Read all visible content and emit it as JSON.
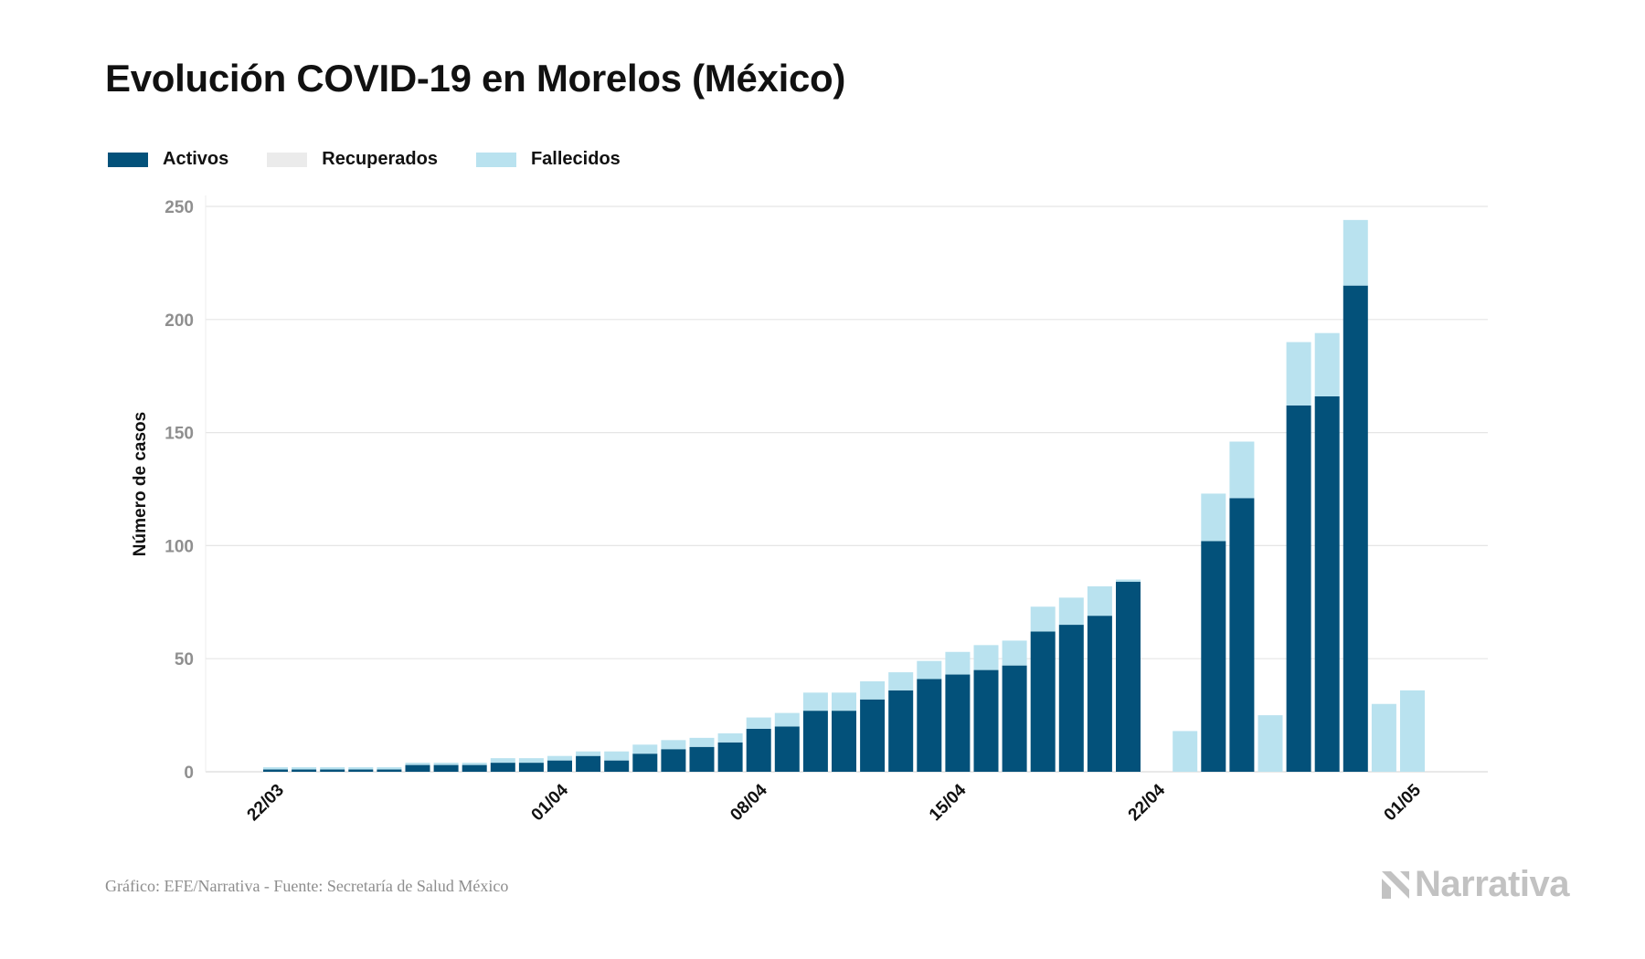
{
  "chart_data": {
    "type": "bar",
    "stacked": true,
    "title": "Evolución COVID-19 en Morelos (México)",
    "xlabel": "",
    "ylabel": "Número de casos",
    "ylim": [
      0,
      250
    ],
    "yticks": [
      0,
      50,
      100,
      150,
      200,
      250
    ],
    "grid": true,
    "legend_position": "top-left",
    "x_tick_labels": [
      {
        "index": 1,
        "label": "22/03"
      },
      {
        "index": 11,
        "label": "01/04"
      },
      {
        "index": 18,
        "label": "08/04"
      },
      {
        "index": 25,
        "label": "15/04"
      },
      {
        "index": 32,
        "label": "22/04"
      },
      {
        "index": 41,
        "label": "01/05"
      }
    ],
    "num_slots": 41,
    "series": [
      {
        "name": "Activos",
        "color": "#03517a",
        "values": [
          1,
          1,
          1,
          1,
          1,
          3,
          3,
          3,
          4,
          4,
          5,
          7,
          5,
          8,
          10,
          11,
          13,
          19,
          20,
          27,
          27,
          32,
          36,
          41,
          43,
          45,
          47,
          62,
          65,
          69,
          84,
          0,
          0,
          102,
          121,
          0,
          162,
          166,
          215,
          0,
          0
        ]
      },
      {
        "name": "Recuperados",
        "color": "#ebebeb",
        "values": [
          0,
          0,
          0,
          0,
          0,
          0,
          0,
          0,
          0,
          0,
          0,
          0,
          0,
          0,
          0,
          0,
          0,
          0,
          0,
          0,
          0,
          0,
          0,
          0,
          0,
          0,
          0,
          0,
          0,
          0,
          0,
          0,
          0,
          0,
          0,
          0,
          0,
          0,
          0,
          0,
          0
        ]
      },
      {
        "name": "Fallecidos",
        "color": "#b9e2ef",
        "values": [
          1,
          1,
          1,
          1,
          1,
          1,
          1,
          1,
          2,
          2,
          2,
          2,
          4,
          4,
          4,
          4,
          4,
          5,
          6,
          8,
          8,
          8,
          8,
          8,
          10,
          11,
          11,
          11,
          12,
          13,
          1,
          0,
          18,
          21,
          25,
          25,
          28,
          28,
          29,
          30,
          36
        ]
      }
    ]
  },
  "source": "Gráfico: EFE/Narrativa - Fuente: Secretaría de Salud México",
  "brand": "Narrativa",
  "colors": {
    "grid": "#e5e5e5",
    "axis_text": "#8f8f8f",
    "brand_gray": "#c2c2c2"
  }
}
